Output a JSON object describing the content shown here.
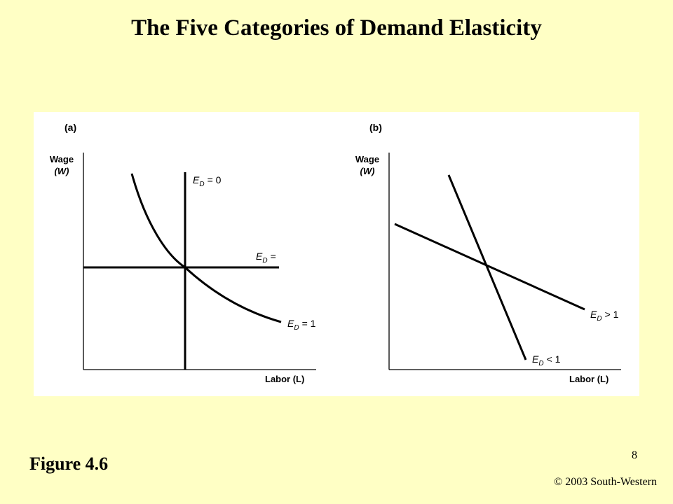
{
  "slide": {
    "title": "The Five Categories of Demand Elasticity",
    "figure_number": "Figure 4.6",
    "slide_number": "8",
    "copyright": "© 2003 South-Western"
  },
  "panel_a": {
    "tag": "(a)",
    "y_axis_label_line1": "Wage",
    "y_axis_label_line2": "(W)",
    "x_axis_label": "Labor (L)",
    "curves": [
      {
        "symbol": "E",
        "subscript": "D",
        "relation": "= 0",
        "kind": "vertical"
      },
      {
        "symbol": "E",
        "subscript": "D",
        "relation": "=",
        "kind": "horizontal"
      },
      {
        "symbol": "E",
        "subscript": "D",
        "relation": "= 1",
        "kind": "unit-elastic"
      }
    ]
  },
  "panel_b": {
    "tag": "(b)",
    "y_axis_label_line1": "Wage",
    "y_axis_label_line2": "(W)",
    "x_axis_label": "Labor (L)",
    "curves": [
      {
        "symbol": "E",
        "subscript": "D",
        "relation": "> 1",
        "kind": "elastic"
      },
      {
        "symbol": "E",
        "subscript": "D",
        "relation": "< 1",
        "kind": "inelastic"
      }
    ]
  },
  "colors": {
    "background": "#FFFFC5",
    "panel": "#ffffff",
    "ink": "#000000"
  }
}
